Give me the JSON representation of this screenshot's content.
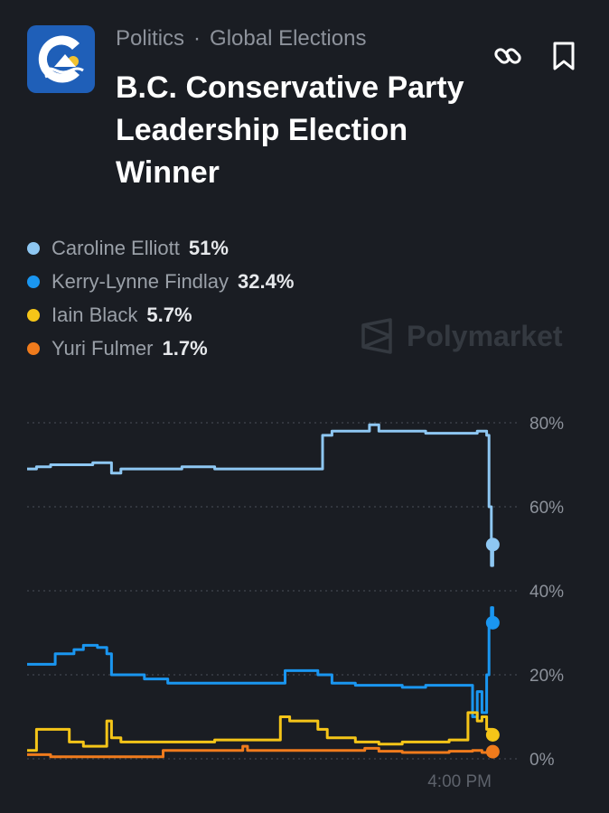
{
  "header": {
    "category": "Politics",
    "separator": "·",
    "subcategory": "Global Elections",
    "title": "B.C. Conservative Party Leadership Election Winner",
    "logo_colors": {
      "background": "#1f5fb8",
      "mark": "#ffffff",
      "sun": "#f2c230"
    },
    "icons": [
      "bc-conservative-logo",
      "link-icon",
      "bookmark-icon"
    ]
  },
  "watermark": {
    "text": "Polymarket",
    "icon": "polymarket-logo-icon"
  },
  "legend": [
    {
      "name": "Caroline Elliott",
      "value": "51%",
      "color": "#8ec7f2"
    },
    {
      "name": "Kerry-Lynne Findlay",
      "value": "32.4%",
      "color": "#1a96f0"
    },
    {
      "name": "Iain Black",
      "value": "5.7%",
      "color": "#f5c518"
    },
    {
      "name": "Yuri Fulmer",
      "value": "1.7%",
      "color": "#f07b1c"
    }
  ],
  "chart_data": {
    "type": "line",
    "y_axis": {
      "ticks": [
        "80%",
        "60%",
        "40%",
        "20%",
        "0%"
      ],
      "range": [
        0,
        80
      ],
      "position": "right",
      "grid": "dotted"
    },
    "x_axis": {
      "ticks": [
        "4:00 PM"
      ]
    },
    "x_range": [
      0,
      100
    ],
    "series": [
      {
        "name": "Caroline Elliott",
        "color": "#8ec7f2",
        "points": [
          [
            0,
            69
          ],
          [
            2,
            69.5
          ],
          [
            5,
            70
          ],
          [
            10,
            70
          ],
          [
            14,
            70.5
          ],
          [
            17,
            70.5
          ],
          [
            18,
            68
          ],
          [
            20,
            69
          ],
          [
            25,
            69
          ],
          [
            30,
            69
          ],
          [
            33,
            69.5
          ],
          [
            40,
            69
          ],
          [
            50,
            69
          ],
          [
            55,
            69
          ],
          [
            60,
            69
          ],
          [
            62,
            69
          ],
          [
            63,
            77
          ],
          [
            65,
            78
          ],
          [
            70,
            78
          ],
          [
            73,
            79.5
          ],
          [
            75,
            78
          ],
          [
            80,
            78
          ],
          [
            85,
            77.5
          ],
          [
            90,
            77.5
          ],
          [
            94,
            77.5
          ],
          [
            96,
            78
          ],
          [
            98,
            77
          ],
          [
            98.5,
            60
          ],
          [
            99,
            46
          ],
          [
            99.3,
            51
          ]
        ]
      },
      {
        "name": "Kerry-Lynne Findlay",
        "color": "#1a96f0",
        "points": [
          [
            0,
            22.5
          ],
          [
            4,
            22.5
          ],
          [
            6,
            25
          ],
          [
            10,
            26
          ],
          [
            12,
            27
          ],
          [
            15,
            26.5
          ],
          [
            17,
            25
          ],
          [
            18,
            20
          ],
          [
            20,
            20
          ],
          [
            25,
            19
          ],
          [
            30,
            18
          ],
          [
            40,
            18
          ],
          [
            50,
            18
          ],
          [
            54,
            18
          ],
          [
            55,
            21
          ],
          [
            60,
            21
          ],
          [
            62,
            20
          ],
          [
            65,
            18
          ],
          [
            70,
            17.5
          ],
          [
            75,
            17.5
          ],
          [
            80,
            17
          ],
          [
            85,
            17.5
          ],
          [
            90,
            17.5
          ],
          [
            94,
            17.5
          ],
          [
            95,
            10
          ],
          [
            96,
            16
          ],
          [
            97,
            11
          ],
          [
            98,
            20
          ],
          [
            98.5,
            33
          ],
          [
            99,
            36
          ],
          [
            99.3,
            32.4
          ]
        ]
      },
      {
        "name": "Iain Black",
        "color": "#f5c518",
        "points": [
          [
            0,
            2
          ],
          [
            1,
            2
          ],
          [
            2,
            7
          ],
          [
            5,
            7
          ],
          [
            8,
            7
          ],
          [
            9,
            4
          ],
          [
            12,
            3
          ],
          [
            16,
            3
          ],
          [
            17,
            9
          ],
          [
            18,
            5
          ],
          [
            20,
            4
          ],
          [
            30,
            4
          ],
          [
            40,
            4.5
          ],
          [
            50,
            4.5
          ],
          [
            53,
            4.5
          ],
          [
            54,
            10
          ],
          [
            56,
            9
          ],
          [
            60,
            9
          ],
          [
            62,
            7
          ],
          [
            64,
            5
          ],
          [
            70,
            4
          ],
          [
            75,
            3.5
          ],
          [
            80,
            4
          ],
          [
            85,
            4
          ],
          [
            90,
            4.5
          ],
          [
            93,
            4.5
          ],
          [
            94,
            11
          ],
          [
            96,
            9
          ],
          [
            97,
            10
          ],
          [
            98,
            7
          ],
          [
            99.3,
            5.7
          ]
        ]
      },
      {
        "name": "Yuri Fulmer",
        "color": "#f07b1c",
        "points": [
          [
            0,
            1
          ],
          [
            5,
            0.5
          ],
          [
            10,
            0.5
          ],
          [
            20,
            0.5
          ],
          [
            28,
            0.5
          ],
          [
            29,
            2
          ],
          [
            40,
            2
          ],
          [
            45,
            2
          ],
          [
            46,
            3
          ],
          [
            47,
            2
          ],
          [
            55,
            2
          ],
          [
            60,
            2
          ],
          [
            70,
            2
          ],
          [
            72,
            2.5
          ],
          [
            75,
            1.8
          ],
          [
            80,
            1.5
          ],
          [
            90,
            1.8
          ],
          [
            95,
            2
          ],
          [
            97,
            1.5
          ],
          [
            99.3,
            1.7
          ]
        ]
      }
    ]
  }
}
